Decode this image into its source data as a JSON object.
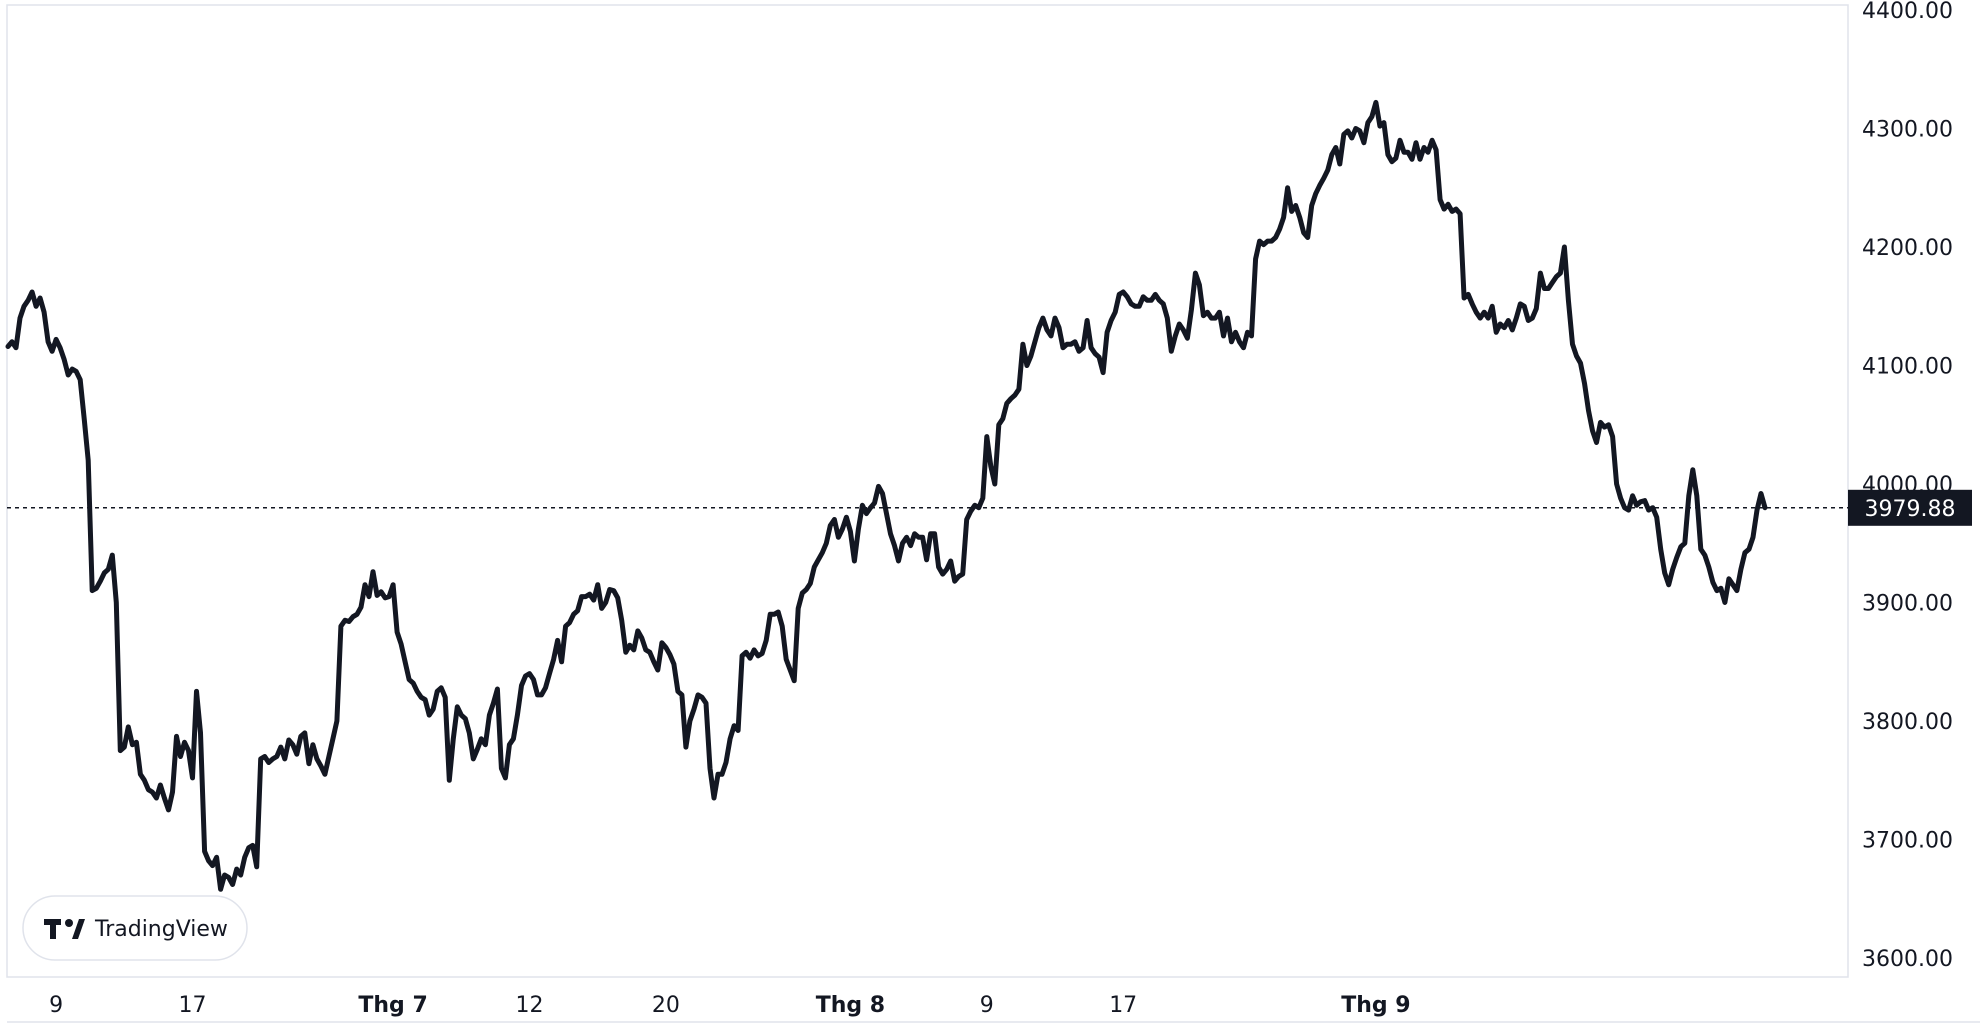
{
  "chart_data": {
    "type": "line",
    "ylim": [
      3590,
      4400
    ],
    "yticks": [
      "3600.00",
      "3700.00",
      "3800.00",
      "3900.00",
      "4000.00",
      "4100.00",
      "4200.00",
      "4300.00",
      "4400.00"
    ],
    "ytick_values": [
      3600,
      3700,
      3800,
      3900,
      4000,
      4100,
      4200,
      4300,
      4400
    ],
    "xticks": [
      {
        "label": "9",
        "bold": false,
        "index": 12
      },
      {
        "label": "17",
        "bold": false,
        "index": 46
      },
      {
        "label": "Thg 7",
        "bold": true,
        "index": 96
      },
      {
        "label": "12",
        "bold": false,
        "index": 130
      },
      {
        "label": "20",
        "bold": false,
        "index": 164
      },
      {
        "label": "Thg 8",
        "bold": true,
        "index": 210
      },
      {
        "label": "9",
        "bold": false,
        "index": 244
      },
      {
        "label": "17",
        "bold": false,
        "index": 278
      },
      {
        "label": "Thg 9",
        "bold": true,
        "index": 341
      }
    ],
    "grid": false,
    "legend": "none",
    "last_value": "3979.88",
    "series": [
      {
        "values": [
          4116,
          4120,
          4115,
          4140,
          4150,
          4155,
          4162,
          4150,
          4157,
          4145,
          4120,
          4112,
          4122,
          4115,
          4105,
          4092,
          4097,
          4095,
          4088,
          4055,
          4020,
          3910,
          3912,
          3918,
          3925,
          3928,
          3940,
          3900,
          3775,
          3778,
          3795,
          3780,
          3782,
          3755,
          3750,
          3742,
          3740,
          3735,
          3746,
          3735,
          3725,
          3740,
          3787,
          3770,
          3782,
          3775,
          3752,
          3825,
          3790,
          3690,
          3682,
          3678,
          3685,
          3658,
          3670,
          3668,
          3662,
          3675,
          3670,
          3685,
          3693,
          3695,
          3677,
          3768,
          3770,
          3765,
          3768,
          3770,
          3778,
          3768,
          3784,
          3780,
          3772,
          3787,
          3790,
          3764,
          3780,
          3768,
          3762,
          3755,
          3770,
          3785,
          3800,
          3880,
          3885,
          3884,
          3888,
          3890,
          3896,
          3915,
          3905,
          3926,
          3906,
          3909,
          3904,
          3905,
          3915,
          3875,
          3865,
          3850,
          3835,
          3832,
          3825,
          3820,
          3818,
          3805,
          3810,
          3825,
          3828,
          3820,
          3750,
          3785,
          3812,
          3805,
          3802,
          3790,
          3768,
          3776,
          3785,
          3780,
          3805,
          3815,
          3827,
          3760,
          3752,
          3780,
          3785,
          3805,
          3830,
          3838,
          3840,
          3835,
          3822,
          3822,
          3828,
          3840,
          3852,
          3868,
          3850,
          3880,
          3883,
          3890,
          3893,
          3905,
          3905,
          3907,
          3902,
          3915,
          3895,
          3900,
          3911,
          3910,
          3904,
          3885,
          3858,
          3864,
          3860,
          3876,
          3870,
          3860,
          3858,
          3850,
          3843,
          3866,
          3862,
          3856,
          3848,
          3825,
          3822,
          3778,
          3800,
          3810,
          3822,
          3820,
          3815,
          3760,
          3735,
          3755,
          3755,
          3765,
          3785,
          3796,
          3792,
          3855,
          3858,
          3853,
          3860,
          3855,
          3857,
          3868,
          3890,
          3890,
          3892,
          3880,
          3852,
          3843,
          3834,
          3895,
          3908,
          3911,
          3916,
          3930,
          3936,
          3942,
          3950,
          3965,
          3970,
          3955,
          3962,
          3972,
          3960,
          3935,
          3962,
          3982,
          3975,
          3980,
          3984,
          3998,
          3992,
          3975,
          3958,
          3948,
          3935,
          3950,
          3955,
          3948,
          3958,
          3955,
          3955,
          3936,
          3958,
          3958,
          3930,
          3924,
          3928,
          3935,
          3918,
          3922,
          3924,
          3970,
          3977,
          3982,
          3980,
          3988,
          4040,
          4015,
          4000,
          4050,
          4055,
          4068,
          4072,
          4075,
          4080,
          4118,
          4100,
          4108,
          4120,
          4132,
          4140,
          4130,
          4125,
          4140,
          4132,
          4115,
          4118,
          4118,
          4120,
          4112,
          4115,
          4138,
          4115,
          4110,
          4107,
          4094,
          4128,
          4138,
          4145,
          4160,
          4162,
          4158,
          4152,
          4150,
          4150,
          4158,
          4155,
          4155,
          4160,
          4155,
          4152,
          4140,
          4112,
          4125,
          4135,
          4130,
          4123,
          4147,
          4178,
          4168,
          4142,
          4145,
          4140,
          4140,
          4145,
          4125,
          4140,
          4120,
          4128,
          4120,
          4115,
          4128,
          4125,
          4190,
          4205,
          4202,
          4205,
          4205,
          4208,
          4215,
          4225,
          4250,
          4230,
          4235,
          4225,
          4212,
          4208,
          4235,
          4245,
          4252,
          4258,
          4265,
          4278,
          4284,
          4270,
          4295,
          4298,
          4292,
          4300,
          4298,
          4288,
          4305,
          4310,
          4322,
          4302,
          4305,
          4278,
          4272,
          4275,
          4290,
          4280,
          4280,
          4274,
          4288,
          4274,
          4284,
          4280,
          4290,
          4282,
          4240,
          4232,
          4236,
          4230,
          4232,
          4228,
          4157,
          4160,
          4152,
          4145,
          4140,
          4145,
          4140,
          4150,
          4128,
          4135,
          4132,
          4138,
          4130,
          4140,
          4152,
          4150,
          4138,
          4140,
          4148,
          4178,
          4165,
          4165,
          4170,
          4175,
          4178,
          4200,
          4155,
          4118,
          4108,
          4102,
          4085,
          4062,
          4045,
          4035,
          4052,
          4048,
          4050,
          4040,
          4000,
          3988,
          3980,
          3978,
          3990,
          3982,
          3985,
          3986,
          3978,
          3980,
          3972,
          3945,
          3925,
          3915,
          3928,
          3938,
          3947,
          3950,
          3990,
          4012,
          3990,
          3945,
          3940,
          3930,
          3917,
          3910,
          3912,
          3900,
          3920,
          3915,
          3910,
          3928,
          3942,
          3945,
          3955,
          3978,
          3992,
          3980
        ]
      }
    ]
  },
  "branding": {
    "logo_mark": "TV",
    "logo_text": "TradingView"
  }
}
